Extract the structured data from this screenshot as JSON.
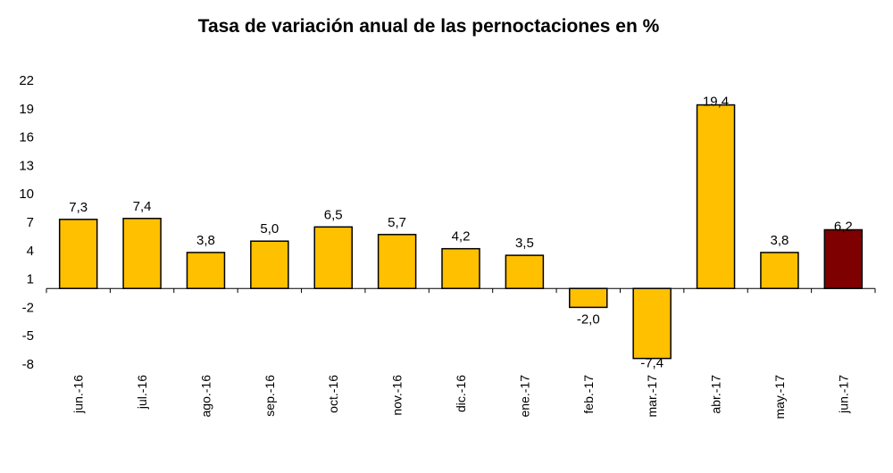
{
  "chart_data": {
    "type": "bar",
    "title": "Tasa de variación anual de las pernoctaciones en %",
    "xlabel": "",
    "ylabel": "",
    "ylim": [
      -8,
      22
    ],
    "yticks": [
      22,
      19,
      16,
      13,
      10,
      7,
      4,
      1,
      -2,
      -5,
      -8
    ],
    "categories": [
      "jun.-16",
      "jul.-16",
      "ago.-16",
      "sep.-16",
      "oct.-16",
      "nov.-16",
      "dic.-16",
      "ene.-17",
      "feb.-17",
      "mar.-17",
      "abr.-17",
      "may.-17",
      "jun.-17"
    ],
    "values": [
      7.3,
      7.4,
      3.8,
      5.0,
      6.5,
      5.7,
      4.2,
      3.5,
      -2.0,
      -7.4,
      19.4,
      3.8,
      6.2
    ],
    "value_labels": [
      "7,3",
      "7,4",
      "3,8",
      "5,0",
      "6,5",
      "5,7",
      "4,2",
      "3,5",
      "-2,0",
      "-7,4",
      "19,4",
      "3,8",
      "6,2"
    ],
    "grid": false,
    "legend": "none",
    "colors": {
      "bar": "#FFC000",
      "highlight": "#7F0000",
      "outline": "#000000"
    },
    "highlight_index": 12
  }
}
